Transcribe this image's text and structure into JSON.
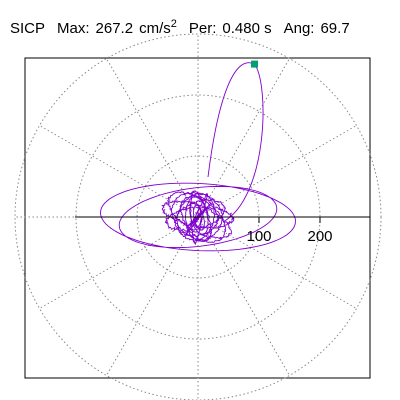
{
  "header": {
    "station": "SICP",
    "max_label": "Max:",
    "max_value": "267.2",
    "max_unit": "cm/s",
    "max_unit_exp": "2",
    "period_label": "Per:",
    "period_value": "0.480 s",
    "angle_label": "Ang:",
    "angle_value": "69.7"
  },
  "chart_data": {
    "type": "polar-orbit",
    "radial_ticks": [
      {
        "value": 100,
        "label": "100"
      },
      {
        "value": 200,
        "label": "200"
      }
    ],
    "rmax": 300,
    "angular_spokes_deg": [
      0,
      30,
      60,
      90,
      120,
      150,
      180,
      210,
      240,
      270,
      300,
      330
    ],
    "grid_style": "dotted",
    "max_marker": {
      "amplitude": 267.2,
      "angle_deg": 69.7
    },
    "colors": {
      "trace": "#8000d0",
      "grid": "#888888",
      "axis": "#000000",
      "marker": "#00a070",
      "frame": "#000000"
    }
  }
}
